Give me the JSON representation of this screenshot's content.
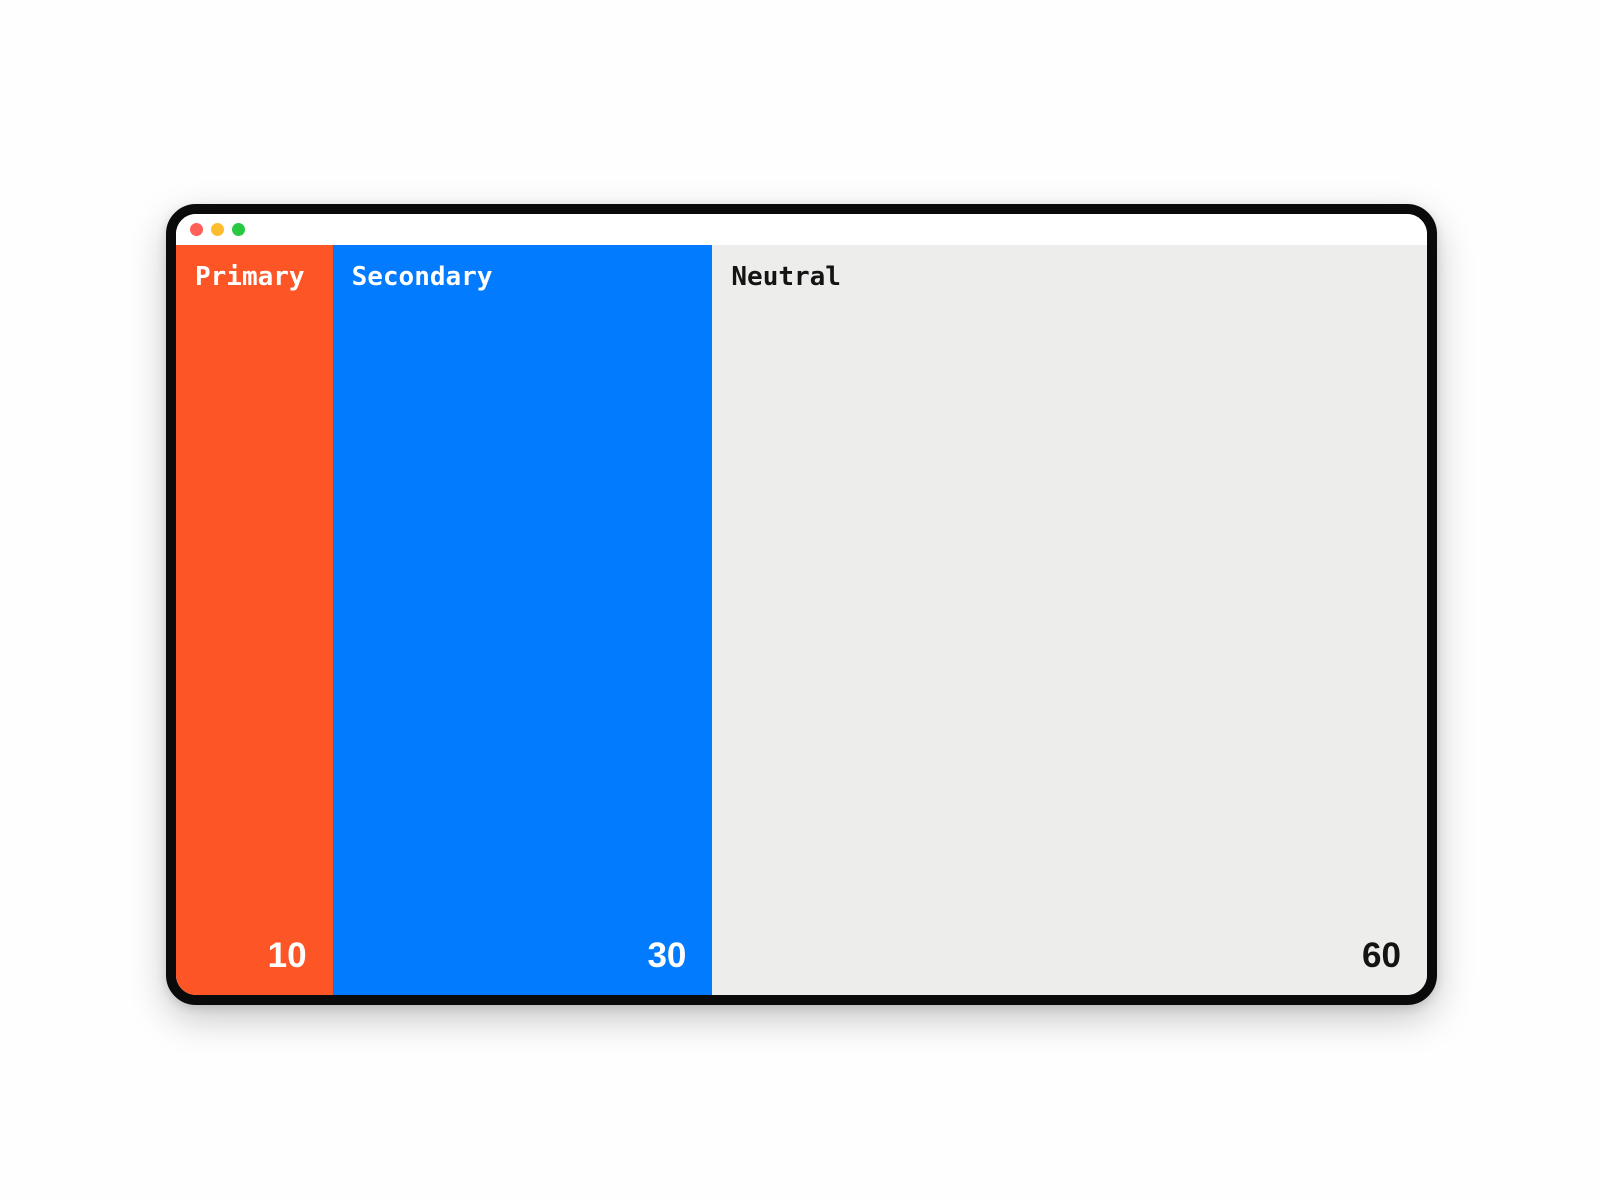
{
  "page": {
    "background": "#fefefe"
  },
  "window": {
    "frame_color": "#0a0a0a",
    "titlebar": {
      "background": "#ffffff",
      "traffic_lights": [
        {
          "name": "close",
          "color": "#ff5f57"
        },
        {
          "name": "minimize",
          "color": "#febc2e"
        },
        {
          "name": "maximize",
          "color": "#28c840"
        }
      ]
    },
    "palette": {
      "columns": [
        {
          "label": "Primary",
          "value": "10",
          "weight": 10,
          "background": "#fd5526",
          "text_color": "#ffffff"
        },
        {
          "label": "Secondary",
          "value": "30",
          "weight": 30,
          "background": "#027bff",
          "text_color": "#ffffff"
        },
        {
          "label": "Neutral",
          "value": "60",
          "weight": 60,
          "background": "#ededeb",
          "text_color": "#141414"
        }
      ]
    }
  }
}
